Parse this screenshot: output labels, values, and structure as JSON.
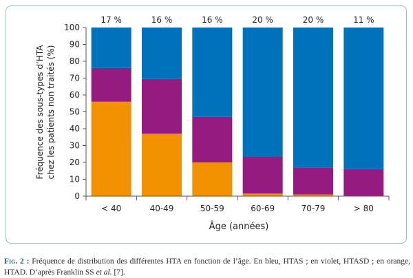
{
  "chart_data": {
    "type": "bar",
    "stacked": true,
    "categories": [
      "< 40",
      "40-49",
      "50-59",
      "60-69",
      "70-79",
      "> 80"
    ],
    "top_labels": [
      "17 %",
      "16 %",
      "16 %",
      "20 %",
      "20 %",
      "11 %"
    ],
    "series": [
      {
        "color": "#f39200",
        "values": [
          56,
          37,
          20,
          1.5,
          1,
          0
        ]
      },
      {
        "color": "#951b81",
        "values": [
          20,
          32.5,
          27,
          22,
          16,
          16
        ]
      },
      {
        "color": "#0071bb",
        "values": [
          24,
          30.5,
          53,
          76.5,
          83,
          84
        ]
      }
    ],
    "ylim": [
      0,
      100
    ],
    "yticks": [
      0,
      10,
      20,
      30,
      40,
      50,
      60,
      70,
      80,
      90,
      100
    ],
    "ylabel_line1": "Fréquence des sous-types d’HTA",
    "ylabel_line2": "chez les patients non traités (%)",
    "xlabel": "Âge (années)",
    "grid": false
  },
  "caption": {
    "lead": "Fig. 2 :",
    "text": " Fréquence de distribution des différentes HTA en fonction de l’âge. En bleu, HTAS ; en violet, HTASD ; en orange, HTAD. D’après Franklin SS ",
    "etal": "et al.",
    "ref": " [7]."
  }
}
